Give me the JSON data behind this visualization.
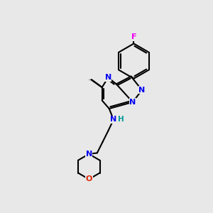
{
  "background_color": "#e8e8e8",
  "bond_color": "#000000",
  "atom_colors": {
    "N": "#0000ee",
    "F": "#ee00ee",
    "O": "#dd2200",
    "H": "#009999",
    "C": "#000000"
  },
  "font_size_atom": 8.0,
  "line_width": 1.5,
  "figsize": [
    3.0,
    3.0
  ],
  "dpi": 100
}
